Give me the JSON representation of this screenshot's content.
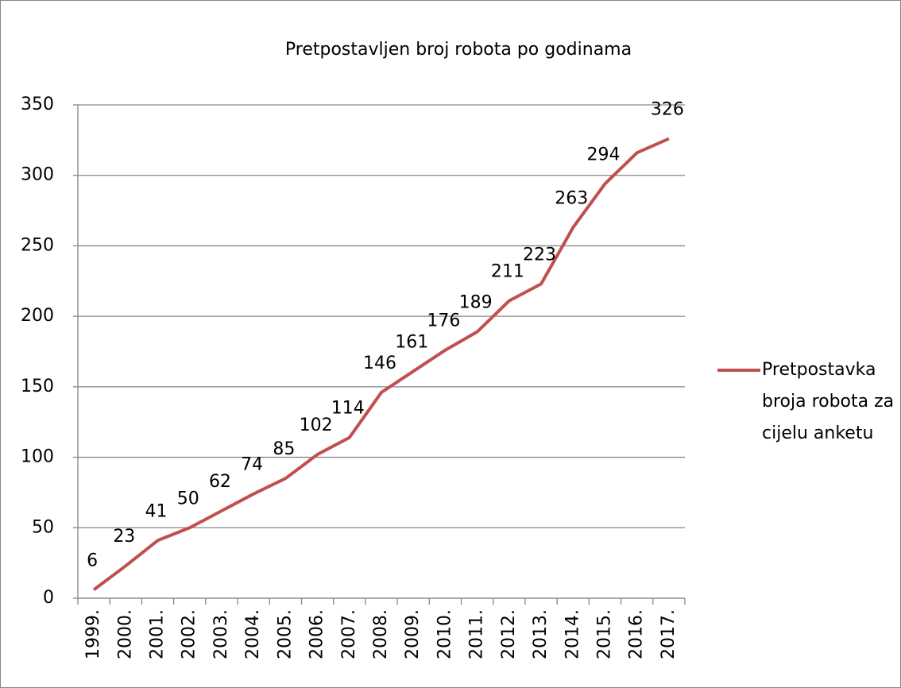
{
  "chart_data": {
    "type": "line",
    "title": "Pretpostavljen broj robota po godinama",
    "categories": [
      "1999.",
      "2000.",
      "2001.",
      "2002.",
      "2003.",
      "2004.",
      "2005.",
      "2006.",
      "2007.",
      "2008.",
      "2009.",
      "2010.",
      "2011.",
      "2012.",
      "2013.",
      "2014.",
      "2015.",
      "2016.",
      "2017."
    ],
    "series": [
      {
        "name": "Pretpostavka broja robota za cijelu anketu",
        "color": "#c0504d",
        "values": [
          6,
          23,
          41,
          50,
          62,
          74,
          85,
          102,
          114,
          146,
          161,
          176,
          189,
          211,
          223,
          263,
          294,
          316,
          326
        ],
        "value_labels": [
          "6",
          "23",
          "41",
          "50",
          "62",
          "74",
          "85",
          "102",
          "114",
          "146",
          "161",
          "176",
          "189",
          "211",
          "223",
          "263",
          "294",
          null,
          "326"
        ]
      }
    ],
    "ylim": [
      0,
      350
    ],
    "yticks": [
      0,
      50,
      100,
      150,
      200,
      250,
      300,
      350
    ],
    "grid": true,
    "legend": "right"
  }
}
